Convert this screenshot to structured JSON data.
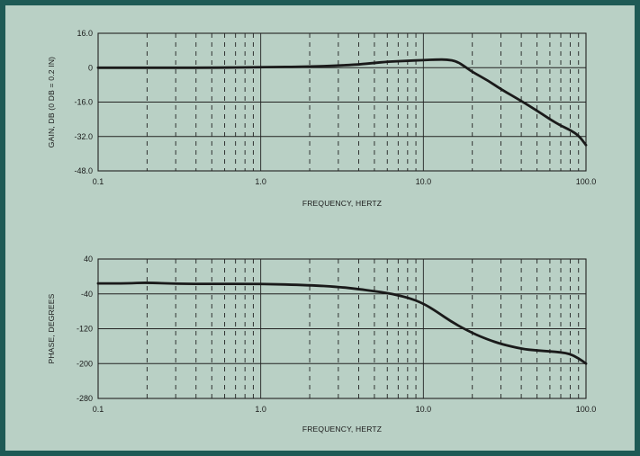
{
  "chart_data": [
    {
      "type": "line",
      "title": "",
      "xlabel": "FREQUENCY, HERTZ",
      "ylabel": "GAIN, DB (0 DB = 0.2 IN)",
      "xscale": "log",
      "xlim": [
        0.1,
        100
      ],
      "ylim": [
        -48,
        16
      ],
      "x_ticks": [
        "0.1",
        "1.0",
        "10.0",
        "100.0"
      ],
      "y_ticks": [
        "16.0",
        "0",
        "-16.0",
        "-32.0",
        "-48.0"
      ],
      "grid": true,
      "series": [
        {
          "x": [
            0.1,
            0.2,
            0.5,
            1.0,
            2.0,
            3.0,
            4.0,
            5.0,
            6.0,
            8.0,
            10.0,
            12.0,
            14.0,
            16.0,
            18.0,
            20.0,
            25.0,
            30.0,
            40.0,
            50.0,
            60.0,
            70.0,
            80.0,
            90.0,
            100.0
          ],
          "values": [
            0,
            0,
            0,
            0.2,
            0.5,
            1.0,
            1.5,
            2.2,
            2.8,
            3.2,
            3.5,
            3.8,
            3.8,
            3.0,
            0.5,
            -2.0,
            -6.0,
            -10.0,
            -15.5,
            -20.0,
            -24.0,
            -27.0,
            -29.0,
            -31.5,
            -36.0
          ]
        }
      ]
    },
    {
      "type": "line",
      "title": "",
      "xlabel": "FREQUENCY, HERTZ",
      "ylabel": "PHASE, DEGREES",
      "xscale": "log",
      "xlim": [
        0.1,
        100
      ],
      "ylim": [
        -280,
        40
      ],
      "x_ticks": [
        "0.1",
        "1.0",
        "10.0",
        "100.0"
      ],
      "y_ticks": [
        "40",
        "-40",
        "-120",
        "-200",
        "-280"
      ],
      "grid": true,
      "series": [
        {
          "x": [
            0.1,
            0.15,
            0.2,
            0.3,
            0.5,
            1.0,
            2.0,
            3.0,
            4.0,
            5.0,
            6.0,
            8.0,
            10.0,
            12.0,
            15.0,
            20.0,
            25.0,
            30.0,
            40.0,
            50.0,
            60.0,
            70.0,
            80.0,
            90.0,
            100.0
          ],
          "values": [
            -16,
            -16,
            -14,
            -17,
            -17,
            -17,
            -20,
            -24,
            -29,
            -34,
            -38,
            -48,
            -62,
            -80,
            -105,
            -130,
            -145,
            -155,
            -166,
            -170,
            -172,
            -174,
            -178,
            -188,
            -200
          ]
        }
      ]
    }
  ]
}
